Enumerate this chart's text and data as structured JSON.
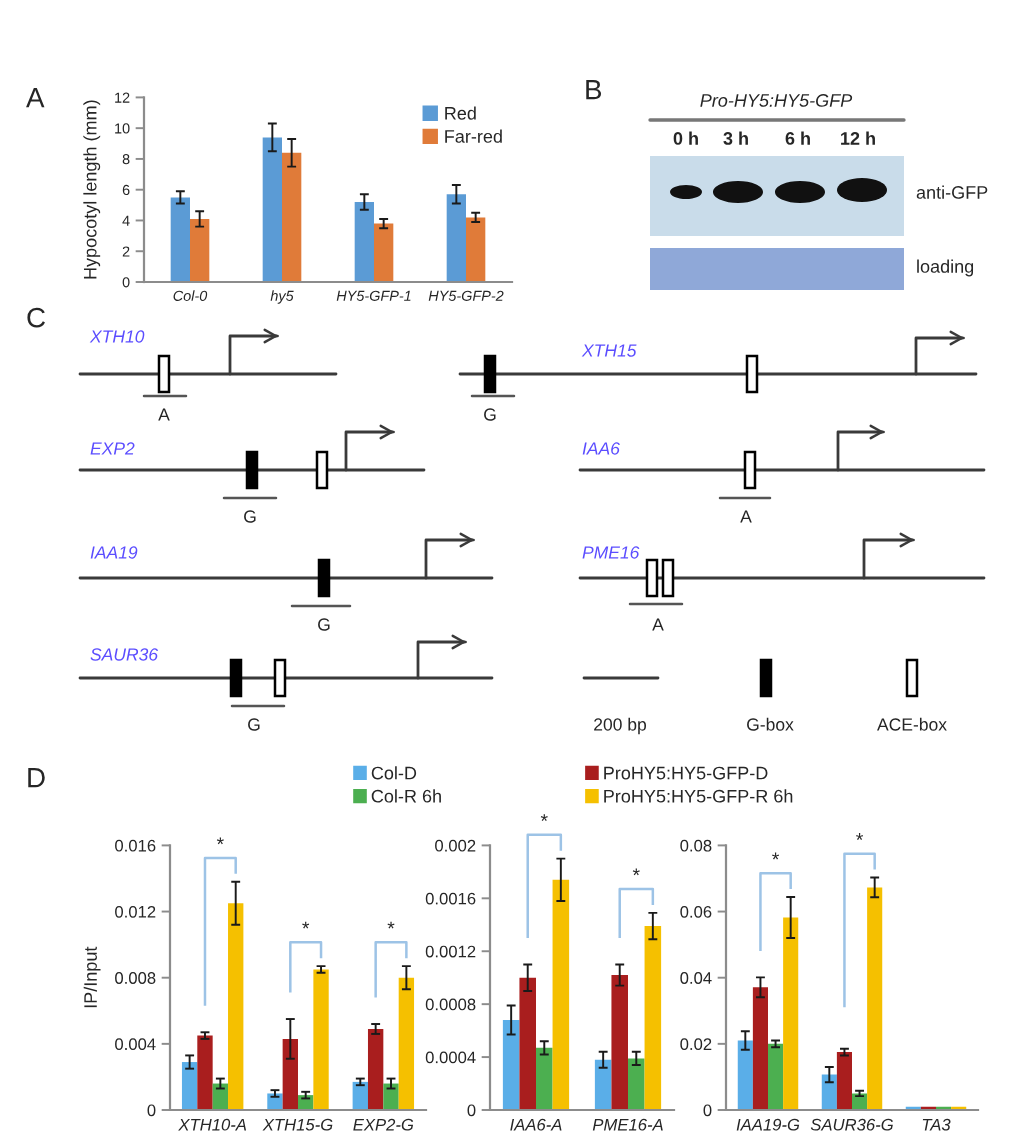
{
  "chart_data": [
    {
      "type": "bar",
      "title": "A",
      "categories": [
        "Col-0",
        "hy5",
        "HY5-GFP-1",
        "HY5-GFP-2"
      ],
      "ylabel": "Hypocotyl length (mm)",
      "ylim": [
        0,
        12
      ],
      "yticks": [
        0,
        2,
        4,
        6,
        8,
        10,
        12
      ],
      "legend": "top right",
      "series": [
        {
          "name": "Red",
          "color": "#5b9bd5",
          "values": [
            5.5,
            9.4,
            5.2,
            5.7
          ],
          "errors": [
            0.4,
            0.9,
            0.5,
            0.6
          ]
        },
        {
          "name": "Far-red",
          "color": "#e07b39",
          "values": [
            4.1,
            8.4,
            3.8,
            4.2
          ],
          "errors": [
            0.5,
            0.9,
            0.3,
            0.3
          ]
        }
      ]
    },
    {
      "type": "other",
      "title": "B",
      "annotations": [
        "Pro-HY5:HY5-GFP",
        "0 h",
        "3 h",
        "6 h",
        "12 h",
        "anti-GFP",
        "loading"
      ]
    },
    {
      "type": "other",
      "title": "C",
      "annotations": [
        "XTH10",
        "A",
        "XTH15",
        "G",
        "EXP2",
        "G",
        "IAA6",
        "A",
        "IAA19",
        "G",
        "PME16",
        "A",
        "SAUR36",
        "G",
        "200 bp",
        "G-box",
        "ACE-box"
      ]
    },
    {
      "type": "bar",
      "title": "D",
      "categories": [
        "XTH10-A",
        "XTH15-G",
        "EXP2-G"
      ],
      "ylabel": "IP/Input",
      "ylim": [
        0,
        0.016
      ],
      "yticks": [
        0,
        0.004,
        0.008,
        0.012,
        0.016
      ],
      "legend": "top",
      "series": [
        {
          "name": "Col-D",
          "color": "#5aaee8",
          "values": [
            0.0029,
            0.001,
            0.0017
          ],
          "errors": [
            0.0004,
            0.0002,
            0.0002
          ]
        },
        {
          "name": "ProHY5:HY5-GFP-D",
          "color": "#a91e1e",
          "values": [
            0.0045,
            0.0043,
            0.0049
          ],
          "errors": [
            0.0002,
            0.0012,
            0.0003
          ]
        },
        {
          "name": "Col-R 6h",
          "color": "#4caf50",
          "values": [
            0.0016,
            0.0009,
            0.0016
          ],
          "errors": [
            0.0003,
            0.0002,
            0.0003
          ]
        },
        {
          "name": "ProHY5:HY5-GFP-R 6h",
          "color": "#f5c000",
          "values": [
            0.0125,
            0.0085,
            0.008
          ],
          "errors": [
            0.0013,
            0.0002,
            0.0007
          ]
        }
      ],
      "annotations": [
        "*",
        "*",
        "*"
      ]
    },
    {
      "type": "bar",
      "categories": [
        "IAA6-A",
        "PME16-A"
      ],
      "ylim": [
        0,
        0.002
      ],
      "yticks": [
        0,
        0.0004,
        0.0008,
        0.0012,
        0.0016,
        0.002
      ],
      "series": [
        {
          "color": "#5aaee8",
          "values": [
            0.00068,
            0.00038
          ],
          "errors": [
            0.00011,
            6e-05
          ]
        },
        {
          "color": "#a91e1e",
          "values": [
            0.001,
            0.00102
          ],
          "errors": [
            0.0001,
            8e-05
          ]
        },
        {
          "color": "#4caf50",
          "values": [
            0.00047,
            0.00039
          ],
          "errors": [
            5e-05,
            5e-05
          ]
        },
        {
          "color": "#f5c000",
          "values": [
            0.00174,
            0.00139
          ],
          "errors": [
            0.00016,
            0.0001
          ]
        }
      ],
      "annotations": [
        "*",
        "*"
      ]
    },
    {
      "type": "bar",
      "categories": [
        "IAA19-G",
        "SAUR36-G",
        "TA3"
      ],
      "ylim": [
        0,
        0.08
      ],
      "yticks": [
        0,
        0.02,
        0.04,
        0.06,
        0.08
      ],
      "series": [
        {
          "color": "#5aaee8",
          "values": [
            0.021,
            0.0107,
            0.001
          ],
          "errors": [
            0.0028,
            0.0023,
            null
          ]
        },
        {
          "color": "#a91e1e",
          "values": [
            0.0371,
            0.0175,
            0.001
          ],
          "errors": [
            0.003,
            0.001,
            null
          ]
        },
        {
          "color": "#4caf50",
          "values": [
            0.02,
            0.005,
            0.001
          ],
          "errors": [
            0.001,
            0.0008,
            null
          ]
        },
        {
          "color": "#f5c000",
          "values": [
            0.0582,
            0.0673,
            0.001
          ],
          "errors": [
            0.0062,
            0.003,
            null
          ]
        }
      ],
      "annotations": [
        "*",
        "*"
      ]
    }
  ]
}
